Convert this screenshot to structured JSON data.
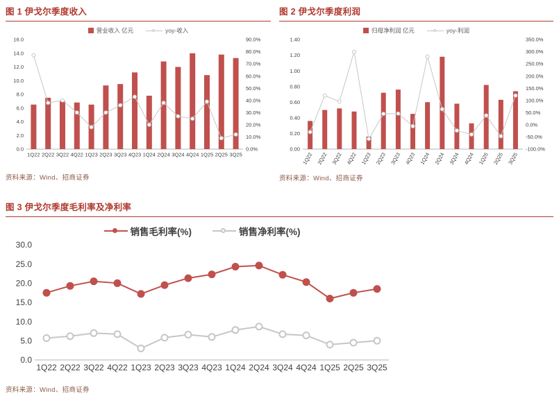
{
  "colors": {
    "title_red": "#b0392f",
    "bar_red": "#c0504d",
    "line_gray": "#c6c6c6",
    "source_brown": "#8a5a48",
    "axis_text": "#404040"
  },
  "chart_data": [
    {
      "id": "quarterly-revenue",
      "type": "bar",
      "title": "图 1 伊戈尔季度收入",
      "source": "资料来源：Wind、招商证券",
      "categories": [
        "1Q22",
        "2Q22",
        "3Q22",
        "4Q22",
        "1Q23",
        "2Q23",
        "3Q23",
        "4Q23",
        "1Q24",
        "2Q24",
        "3Q24",
        "4Q24",
        "1Q25",
        "2Q25",
        "3Q25"
      ],
      "series": [
        {
          "name": "营业收入 亿元",
          "type": "bar",
          "axis": "left",
          "color": "#c0504d",
          "marker": "none",
          "values": [
            6.5,
            7.5,
            7.0,
            6.8,
            6.5,
            9.3,
            9.5,
            11.2,
            7.8,
            12.8,
            12.0,
            14.0,
            10.8,
            13.8,
            13.3
          ]
        },
        {
          "name": "yoy-收入",
          "type": "line",
          "axis": "right",
          "color": "#c6c6c6",
          "marker": "open",
          "values": [
            77,
            38,
            40,
            30,
            18,
            30,
            36,
            43,
            20,
            38,
            27,
            25,
            39,
            9,
            12
          ]
        }
      ],
      "axes": {
        "left": {
          "min": 0,
          "max": 16,
          "step": 2,
          "decimals": 1,
          "suffix": ""
        },
        "right": {
          "min": 0,
          "max": 90,
          "step": 10,
          "decimals": 1,
          "suffix": "%"
        }
      },
      "legend_position": "top",
      "grid": false
    },
    {
      "id": "quarterly-profit",
      "type": "bar",
      "title": "图 2 伊戈尔季度利润",
      "source": "资料来源：Wind、招商证券",
      "categories": [
        "1Q22",
        "2Q22",
        "3Q22",
        "4Q22",
        "1Q23",
        "2Q23",
        "3Q23",
        "4Q23",
        "1Q24",
        "2Q24",
        "3Q24",
        "4Q24",
        "1Q25",
        "2Q25",
        "3Q25"
      ],
      "series": [
        {
          "name": "归母净利润 亿元",
          "type": "bar",
          "axis": "left",
          "color": "#c0504d",
          "marker": "none",
          "values": [
            0.36,
            0.5,
            0.52,
            0.48,
            0.16,
            0.72,
            0.76,
            0.45,
            0.6,
            1.18,
            0.58,
            0.33,
            0.82,
            0.63,
            0.74
          ]
        },
        {
          "name": "yoy-利润",
          "type": "line",
          "axis": "right",
          "color": "#c6c6c6",
          "marker": "open",
          "values": [
            -30,
            120,
            95,
            300,
            -58,
            45,
            46,
            -6,
            280,
            64,
            -24,
            -40,
            38,
            -47,
            120
          ]
        }
      ],
      "axes": {
        "left": {
          "min": 0,
          "max": 1.4,
          "step": 0.2,
          "decimals": 2,
          "suffix": ""
        },
        "right": {
          "min": -100,
          "max": 350,
          "step": 50,
          "decimals": 1,
          "suffix": "%"
        }
      },
      "legend_position": "top",
      "grid": false
    },
    {
      "id": "quarterly-margins",
      "type": "line",
      "title": "图 3 伊戈尔季度毛利率及净利率",
      "source": "资料来源：Wind、招商证券",
      "categories": [
        "1Q22",
        "2Q22",
        "3Q22",
        "4Q22",
        "1Q23",
        "2Q23",
        "3Q23",
        "4Q23",
        "1Q24",
        "2Q24",
        "3Q24",
        "4Q24",
        "1Q25",
        "2Q25",
        "3Q25"
      ],
      "series": [
        {
          "name": "销售毛利率(%)",
          "type": "line",
          "axis": "left",
          "color": "#c0504d",
          "marker": "filled",
          "values": [
            17.5,
            19.3,
            20.5,
            20.0,
            17.2,
            19.5,
            21.3,
            22.3,
            24.3,
            24.6,
            22.2,
            20.3,
            16.0,
            17.5,
            18.5
          ]
        },
        {
          "name": "销售净利率(%)",
          "type": "line",
          "axis": "left",
          "color": "#c6c6c6",
          "marker": "open",
          "values": [
            5.7,
            6.2,
            7.0,
            6.7,
            3.0,
            5.8,
            6.6,
            6.0,
            7.8,
            8.7,
            6.7,
            6.4,
            4.0,
            4.5,
            5.0
          ]
        }
      ],
      "axes": {
        "left": {
          "min": 0,
          "max": 30,
          "step": 5,
          "decimals": 1,
          "suffix": ""
        }
      },
      "legend_position": "top",
      "grid": false
    }
  ]
}
